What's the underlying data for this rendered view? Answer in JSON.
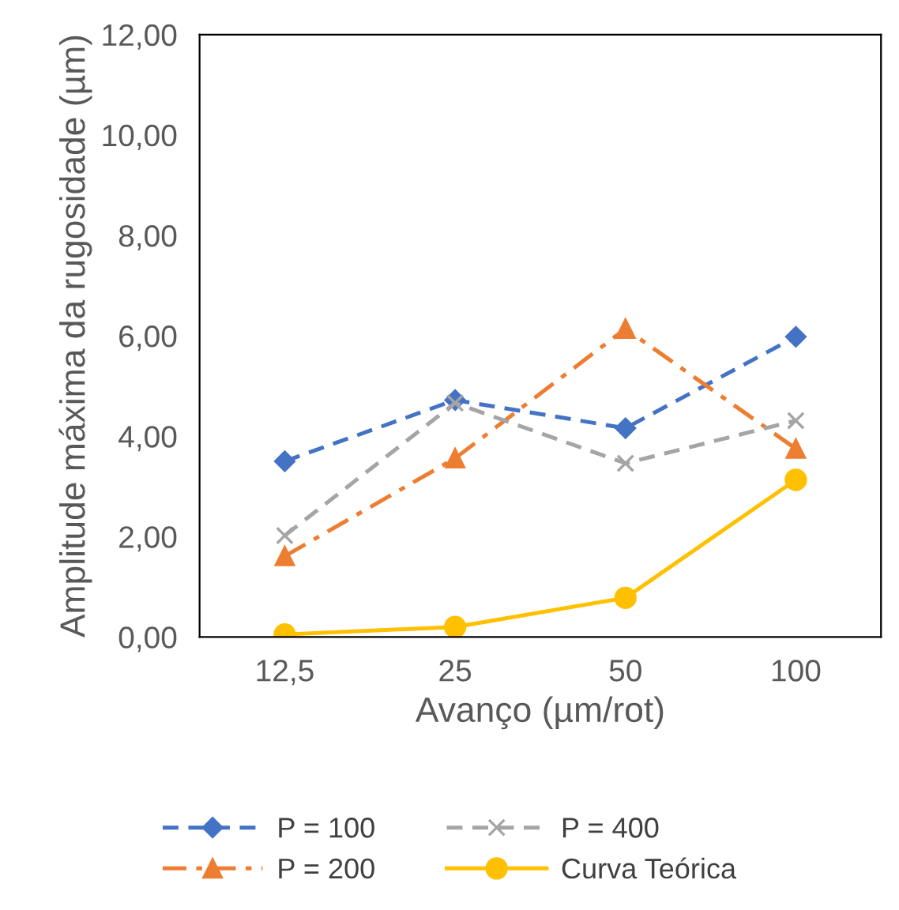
{
  "chart_data": {
    "type": "line",
    "xlabel": "Avanço (µm/rot)",
    "ylabel": "Amplitude máxima da rugosidade (µm)",
    "categories": [
      "12,5",
      "25",
      "50",
      "100"
    ],
    "ylim": [
      0,
      12
    ],
    "yticks": [
      {
        "value": 0,
        "label": "0,00"
      },
      {
        "value": 2,
        "label": "2,00"
      },
      {
        "value": 4,
        "label": "4,00"
      },
      {
        "value": 6,
        "label": "6,00"
      },
      {
        "value": 8,
        "label": "8,00"
      },
      {
        "value": 10,
        "label": "10,00"
      },
      {
        "value": 12,
        "label": "12,00"
      }
    ],
    "grid": false,
    "legend": "bottom",
    "series": [
      {
        "name": "P = 100",
        "color": "#4472c4",
        "marker": "diamond",
        "line_style": "dashed",
        "values": [
          3.5,
          4.72,
          4.16,
          5.98
        ]
      },
      {
        "name": "P = 200",
        "color": "#ed7d31",
        "marker": "triangle",
        "line_style": "dashdot",
        "values": [
          1.61,
          3.56,
          6.14,
          3.75
        ]
      },
      {
        "name": "P = 400",
        "color": "#a5a5a5",
        "marker": "cross",
        "line_style": "dashed",
        "values": [
          2.02,
          4.66,
          3.46,
          4.31
        ]
      },
      {
        "name": "Curva Teórica",
        "color": "#ffc000",
        "marker": "circle",
        "line_style": "solid",
        "values": [
          0.05,
          0.2,
          0.78,
          3.13
        ]
      }
    ]
  }
}
